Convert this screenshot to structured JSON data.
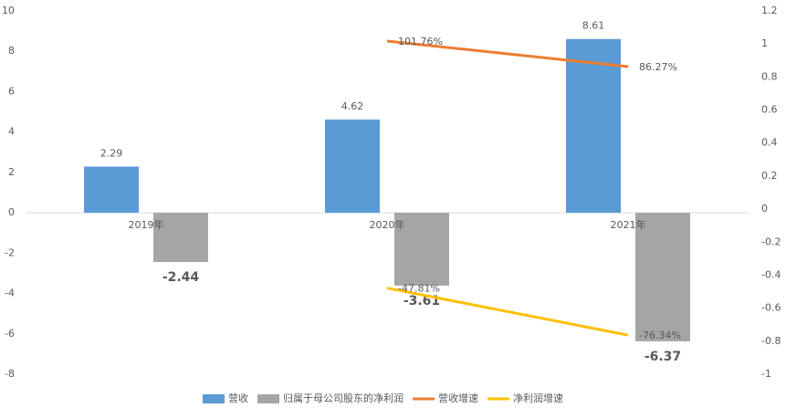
{
  "chart_data": {
    "type": "bar",
    "categories": [
      "2019年",
      "2020年",
      "2021年"
    ],
    "series": [
      {
        "name": "营收",
        "color": "#5b9bd5",
        "values": [
          2.29,
          4.62,
          8.61
        ]
      },
      {
        "name": "归属于母公司股东的净利润",
        "color": "#a5a5a5",
        "values": [
          -2.44,
          -3.61,
          -6.37
        ]
      },
      {
        "name": "营收增速",
        "type": "line",
        "axis": "y2",
        "color": "#ed7d31",
        "values": [
          null,
          1.0176,
          0.8627
        ],
        "value_labels": [
          null,
          "101.76%",
          "86.27%"
        ]
      },
      {
        "name": "净利润增速",
        "type": "line",
        "axis": "y2",
        "color": "#ffc000",
        "values": [
          null,
          -0.4781,
          -0.7634
        ],
        "value_labels": [
          null,
          "-47.81%",
          "-76.34%"
        ]
      }
    ],
    "ylim": [
      -8,
      10
    ],
    "yticks": [
      -8,
      -6,
      -4,
      -2,
      0,
      2,
      4,
      6,
      8,
      10
    ],
    "y2lim": [
      -1,
      1.2
    ],
    "y2ticks": [
      -1,
      -0.8,
      -0.6,
      -0.4,
      -0.2,
      0,
      0.2,
      0.4,
      0.6,
      0.8,
      1,
      1.2
    ],
    "grid": false,
    "legend": "bottom"
  }
}
